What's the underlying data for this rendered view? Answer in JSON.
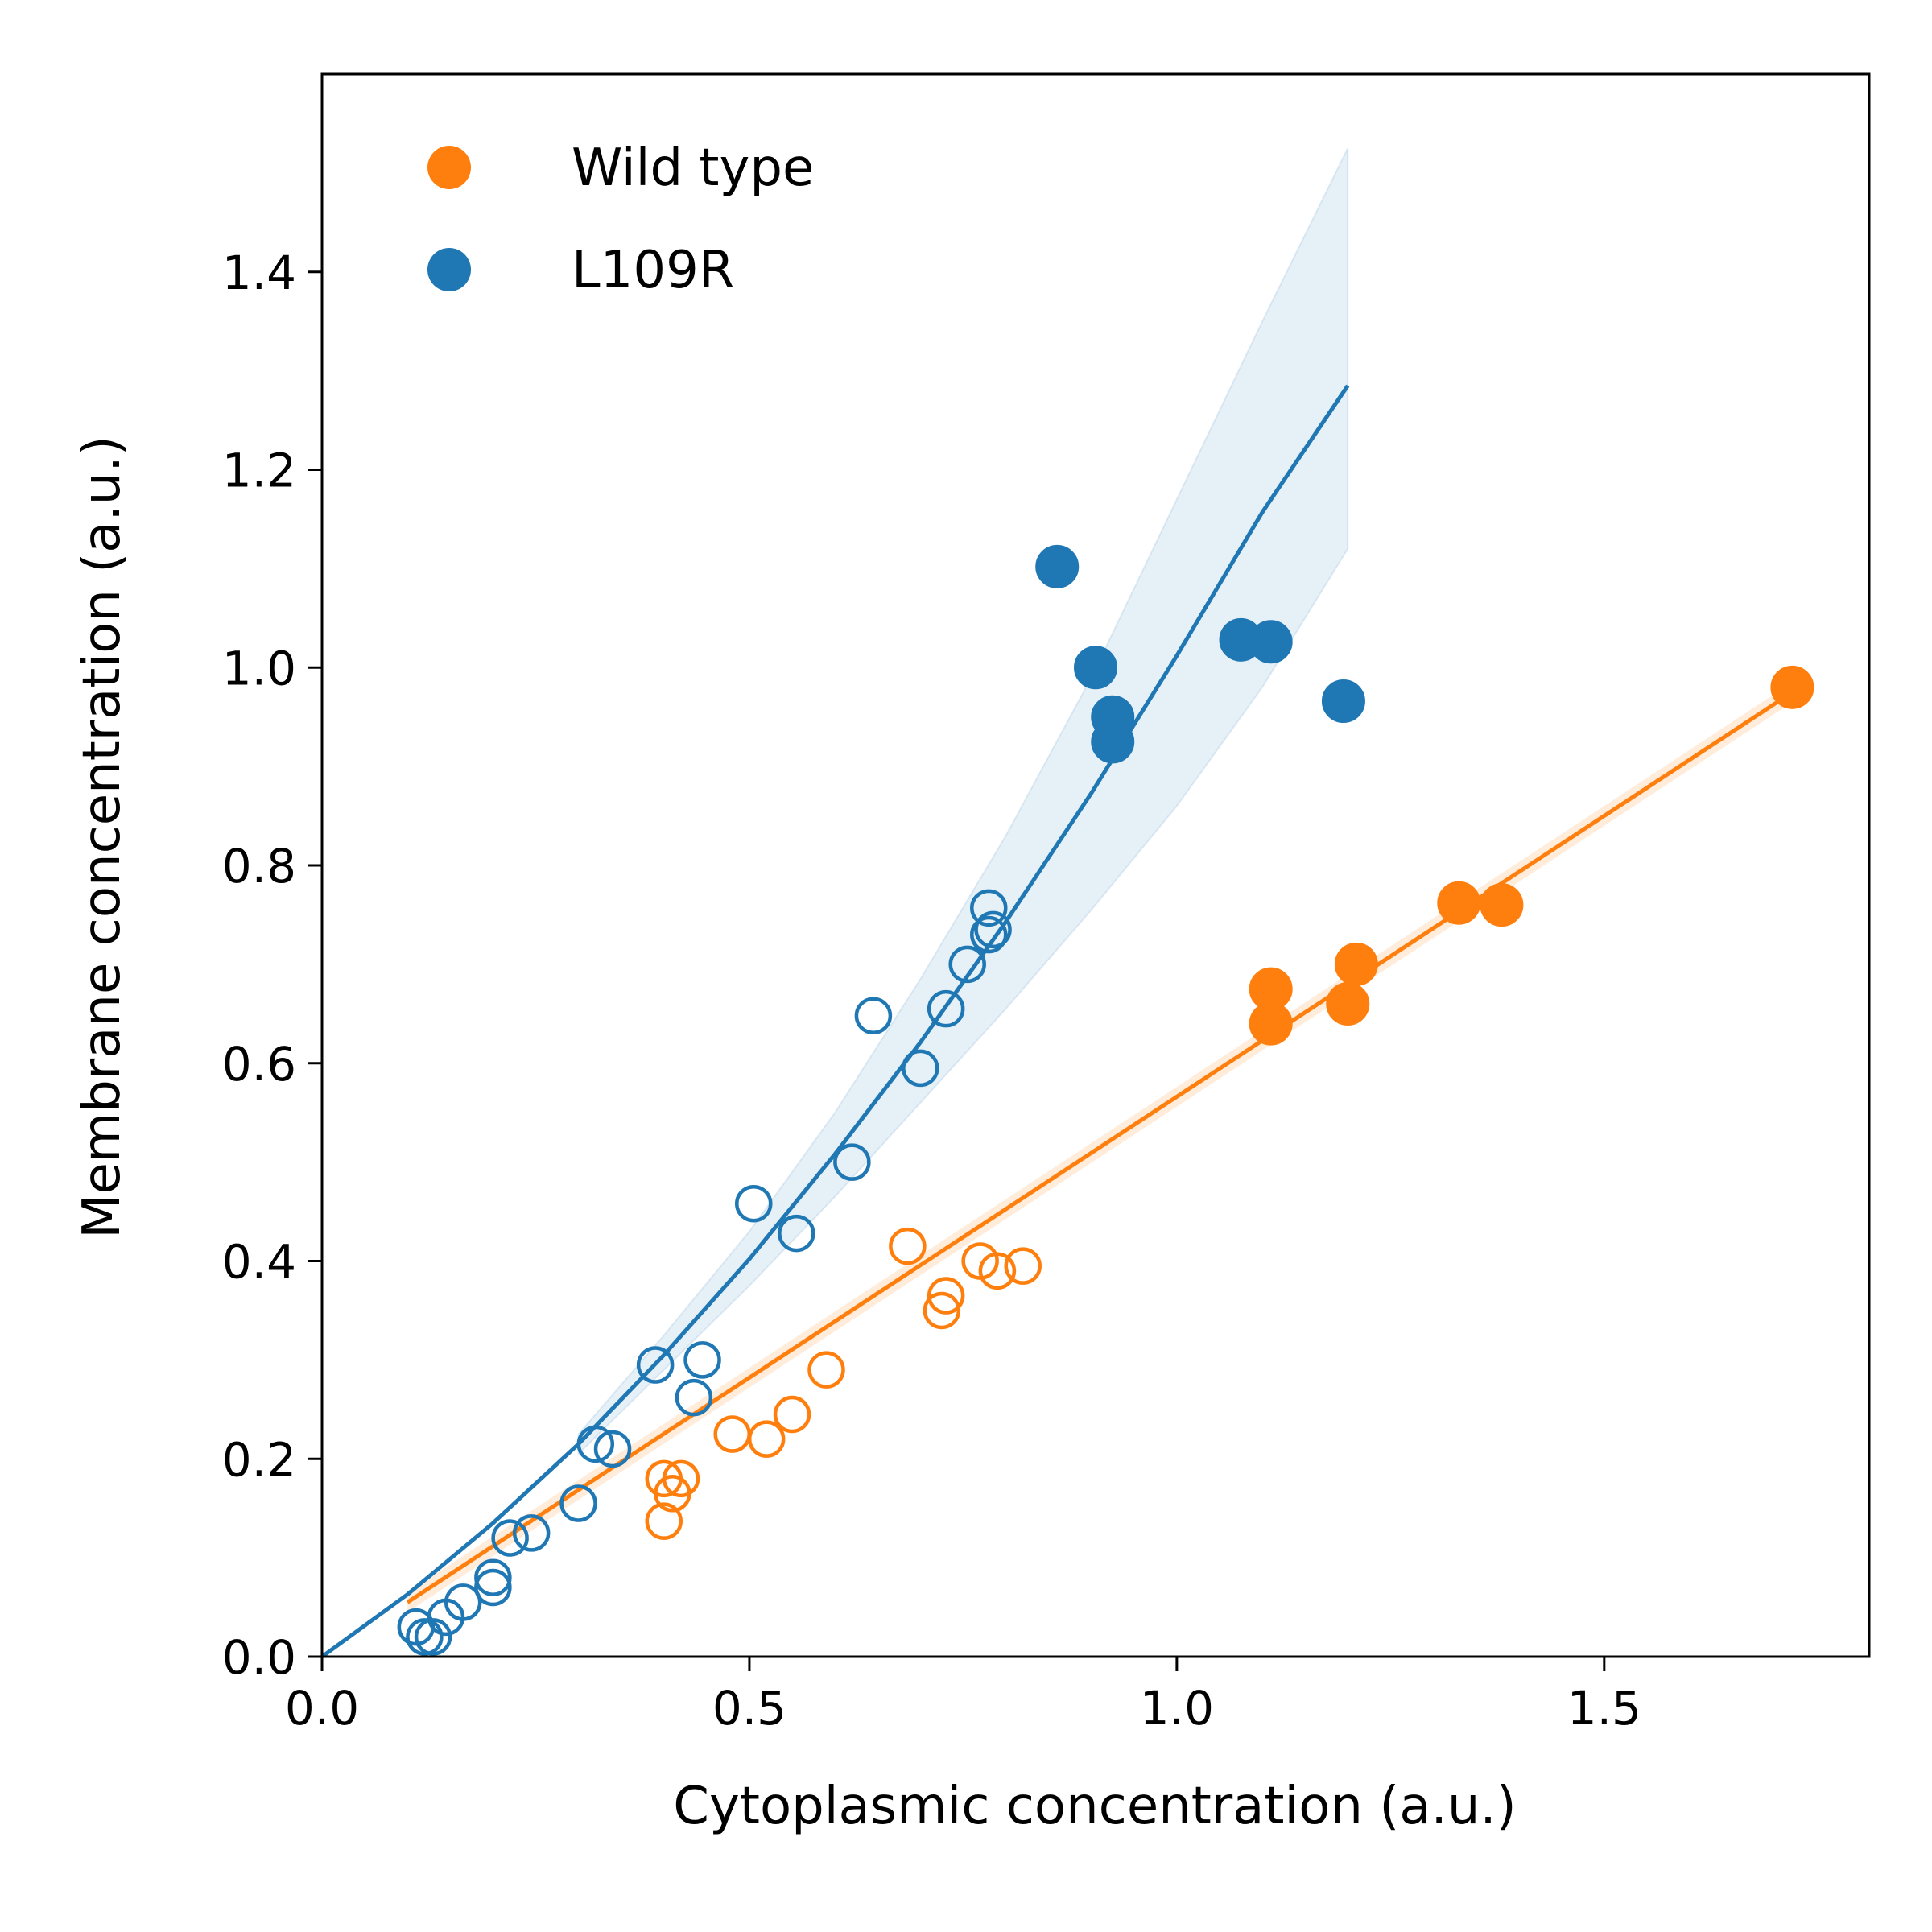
{
  "chart_data": {
    "type": "scatter",
    "title": "",
    "xlabel": "Cytoplasmic concentration (a.u.)",
    "ylabel": "Membrane concentration (a.u.)",
    "xlim": [
      0.0,
      1.81
    ],
    "ylim": [
      0.0,
      1.6
    ],
    "x_ticks": [
      0.0,
      0.5,
      1.0,
      1.5
    ],
    "x_tick_labels": [
      "0.0",
      "0.5",
      "1.0",
      "1.5"
    ],
    "y_ticks": [
      0.0,
      0.2,
      0.4,
      0.6,
      0.8,
      1.0,
      1.2,
      1.4
    ],
    "y_tick_labels": [
      "0.0",
      "0.2",
      "0.4",
      "0.6",
      "0.8",
      "1.0",
      "1.2",
      "1.4"
    ],
    "grid": false,
    "legend_position": "top-left",
    "series": [
      {
        "name": "Wild type",
        "color": "#ff7f0e",
        "open_points": [
          [
            0.4,
            0.18
          ],
          [
            0.42,
            0.18
          ],
          [
            0.41,
            0.165
          ],
          [
            0.4,
            0.137
          ],
          [
            0.48,
            0.225
          ],
          [
            0.52,
            0.22
          ],
          [
            0.55,
            0.245
          ],
          [
            0.59,
            0.29
          ],
          [
            0.685,
            0.415
          ],
          [
            0.73,
            0.365
          ],
          [
            0.725,
            0.35
          ],
          [
            0.77,
            0.4
          ],
          [
            0.79,
            0.39
          ],
          [
            0.82,
            0.395
          ]
        ],
        "filled_points": [
          [
            1.11,
            0.675
          ],
          [
            1.11,
            0.64
          ],
          [
            1.2,
            0.66
          ],
          [
            1.21,
            0.7
          ],
          [
            1.33,
            0.762
          ],
          [
            1.38,
            0.76
          ],
          [
            1.72,
            0.98
          ]
        ],
        "fit_line": [
          [
            0.1,
            0.055
          ],
          [
            1.72,
            0.975
          ]
        ],
        "band_halfwidth": 0.01
      },
      {
        "name": "L109R",
        "color": "#1f77b4",
        "open_points": [
          [
            0.11,
            0.03
          ],
          [
            0.12,
            0.02
          ],
          [
            0.13,
            0.02
          ],
          [
            0.145,
            0.04
          ],
          [
            0.165,
            0.055
          ],
          [
            0.2,
            0.07
          ],
          [
            0.2,
            0.08
          ],
          [
            0.22,
            0.12
          ],
          [
            0.245,
            0.125
          ],
          [
            0.3,
            0.155
          ],
          [
            0.32,
            0.215
          ],
          [
            0.34,
            0.21
          ],
          [
            0.39,
            0.295
          ],
          [
            0.435,
            0.262
          ],
          [
            0.445,
            0.3
          ],
          [
            0.505,
            0.458
          ],
          [
            0.555,
            0.428
          ],
          [
            0.62,
            0.5
          ],
          [
            0.645,
            0.648
          ],
          [
            0.7,
            0.595
          ],
          [
            0.73,
            0.655
          ],
          [
            0.755,
            0.7
          ],
          [
            0.78,
            0.757
          ],
          [
            0.78,
            0.73
          ],
          [
            0.785,
            0.735
          ]
        ],
        "filled_points": [
          [
            0.86,
            1.102
          ],
          [
            0.905,
            1.0
          ],
          [
            0.925,
            0.95
          ],
          [
            0.925,
            0.925
          ],
          [
            1.075,
            1.028
          ],
          [
            1.11,
            1.026
          ],
          [
            1.195,
            0.966
          ]
        ],
        "fit_curve": {
          "x": [
            0.0,
            0.1,
            0.2,
            0.3,
            0.4,
            0.5,
            0.6,
            0.7,
            0.8,
            0.9,
            1.0,
            1.1,
            1.2
          ],
          "y": [
            0.0,
            0.063,
            0.135,
            0.215,
            0.305,
            0.402,
            0.508,
            0.621,
            0.743,
            0.873,
            1.012,
            1.157,
            1.285
          ]
        },
        "band": {
          "x": [
            0.3,
            0.4,
            0.5,
            0.6,
            0.7,
            0.8,
            0.9,
            1.0,
            1.1,
            1.2
          ],
          "lower": [
            0.205,
            0.29,
            0.375,
            0.465,
            0.56,
            0.655,
            0.755,
            0.86,
            0.98,
            1.12
          ],
          "upper": [
            0.225,
            0.325,
            0.43,
            0.55,
            0.685,
            0.83,
            0.99,
            1.17,
            1.35,
            1.525
          ]
        }
      }
    ]
  }
}
